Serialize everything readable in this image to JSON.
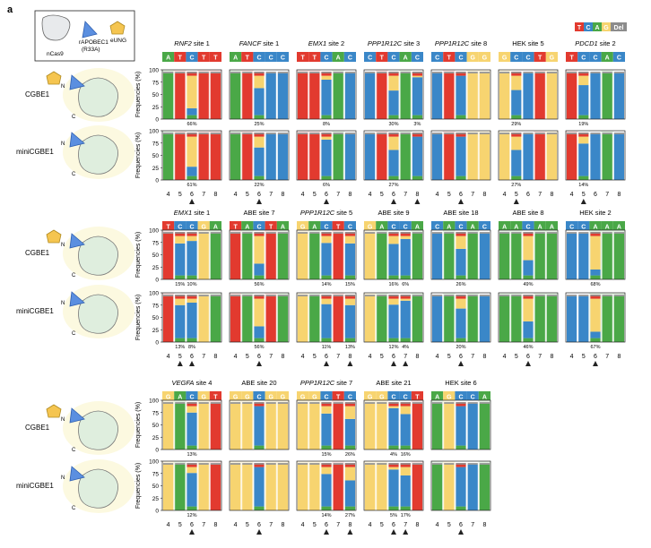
{
  "panel_letter": "a",
  "legend": {
    "bases": [
      "T",
      "C",
      "A",
      "G",
      "Del"
    ],
    "colors": {
      "T": "#e23a2f",
      "C": "#3a87c8",
      "A": "#4aa847",
      "G": "#f7d470",
      "Del": "#8c8c8c"
    }
  },
  "schematic": {
    "ncas9": "nCas9",
    "rapobec1": "rAPOBEC1",
    "r33a": "(R33A)",
    "eung": "eUNG",
    "n": "N",
    "c": "C"
  },
  "row_labels": {
    "cgbe1": "CGBE1",
    "minicgbe1": "miniCGBE1"
  },
  "ylabel": "Frequencies (%)",
  "yticks": [
    "100",
    "75",
    "50",
    "25",
    "0"
  ],
  "xtick_labels": [
    "4",
    "5",
    "6",
    "7",
    "8"
  ],
  "chart_data": {
    "type": "bar",
    "ylabel": "Frequencies (%)",
    "ylim": [
      0,
      100
    ],
    "positions": [
      4,
      5,
      6,
      7,
      8
    ],
    "sites": [
      {
        "name": "RNF2",
        "suffix": " site 1",
        "italic": true,
        "seq": [
          "A",
          "T",
          "C",
          "T",
          "T"
        ],
        "edit": [
          6
        ],
        "cgbe1": {
          "pct": [
            0,
            0,
            66,
            0,
            0
          ],
          "labels": [
            "66%"
          ]
        },
        "mini": {
          "pct": [
            0,
            0,
            61,
            0,
            0
          ],
          "labels": [
            "61%"
          ]
        }
      },
      {
        "name": "FANCF",
        "suffix": " site 1",
        "italic": true,
        "seq": [
          "A",
          "T",
          "C",
          "C",
          "C"
        ],
        "edit": [
          6
        ],
        "cgbe1": {
          "pct": [
            0,
            0,
            25,
            0,
            0
          ],
          "labels": [
            "25%"
          ]
        },
        "mini": {
          "pct": [
            0,
            0,
            22,
            0,
            0
          ],
          "labels": [
            "22%"
          ]
        }
      },
      {
        "name": "EMX1",
        "suffix": " site 2",
        "italic": true,
        "seq": [
          "T",
          "T",
          "C",
          "A",
          "C"
        ],
        "edit": [
          6
        ],
        "cgbe1": {
          "pct": [
            0,
            0,
            8,
            0,
            0
          ],
          "labels": [
            "8%"
          ]
        },
        "mini": {
          "pct": [
            0,
            0,
            6,
            0,
            0
          ],
          "labels": [
            "6%"
          ]
        }
      },
      {
        "name": "PPP1R12C",
        "suffix": " site 3",
        "italic": true,
        "seq": [
          "C",
          "T",
          "C",
          "A",
          "C"
        ],
        "edit": [
          6,
          8
        ],
        "cgbe1": {
          "pct": [
            0,
            0,
            30,
            0,
            3
          ],
          "labels": [
            "30%",
            "3%"
          ]
        },
        "mini": {
          "pct": [
            0,
            0,
            27,
            0,
            0
          ],
          "labels": [
            "27%"
          ]
        }
      },
      {
        "name": "PPP1R12C",
        "suffix": " site 8",
        "italic": true,
        "seq": [
          "C",
          "T",
          "C",
          "G",
          "G"
        ],
        "edit": [
          6
        ],
        "cgbe1": {
          "pct": [
            0,
            0,
            0,
            0,
            0
          ],
          "labels": []
        },
        "mini": {
          "pct": [
            0,
            0,
            0,
            0,
            0
          ],
          "labels": []
        }
      },
      {
        "name": "HEK",
        "suffix": " site 5",
        "italic": false,
        "seq": [
          "G",
          "C",
          "C",
          "T",
          "G"
        ],
        "edit": [
          5
        ],
        "cgbe1": {
          "pct": [
            0,
            29,
            0,
            0,
            0
          ],
          "labels": [
            "29%"
          ]
        },
        "mini": {
          "pct": [
            0,
            27,
            0,
            0,
            0
          ],
          "labels": [
            "27%"
          ]
        }
      },
      {
        "name": "PDCD1",
        "suffix": " site 2",
        "italic": true,
        "seq": [
          "T",
          "C",
          "C",
          "A",
          "C"
        ],
        "edit": [
          5
        ],
        "cgbe1": {
          "pct": [
            0,
            19,
            0,
            0,
            0
          ],
          "labels": [
            "19%"
          ]
        },
        "mini": {
          "pct": [
            0,
            14,
            0,
            0,
            0
          ],
          "labels": [
            "14%"
          ]
        }
      },
      {
        "name": "EMX1",
        "suffix": " site 1",
        "italic": true,
        "seq": [
          "T",
          "C",
          "C",
          "G",
          "A"
        ],
        "edit": [
          5,
          6
        ],
        "cgbe1": {
          "pct": [
            0,
            15,
            10,
            0,
            0
          ],
          "labels": [
            "15%",
            "10%"
          ]
        },
        "mini": {
          "pct": [
            0,
            13,
            8,
            0,
            0
          ],
          "labels": [
            "13%",
            "8%"
          ]
        }
      },
      {
        "name": "ABE",
        "suffix": " site 7",
        "italic": false,
        "seq": [
          "T",
          "A",
          "C",
          "T",
          "A"
        ],
        "edit": [
          6
        ],
        "cgbe1": {
          "pct": [
            0,
            0,
            56,
            0,
            0
          ],
          "labels": [
            "56%"
          ]
        },
        "mini": {
          "pct": [
            0,
            0,
            56,
            0,
            0
          ],
          "labels": [
            "56%"
          ]
        }
      },
      {
        "name": "PPP1R12C",
        "suffix": " site 5",
        "italic": true,
        "seq": [
          "G",
          "A",
          "C",
          "T",
          "C"
        ],
        "edit": [
          6,
          8
        ],
        "cgbe1": {
          "pct": [
            0,
            0,
            14,
            0,
            15
          ],
          "labels": [
            "14%",
            "15%"
          ]
        },
        "mini": {
          "pct": [
            0,
            0,
            11,
            0,
            13
          ],
          "labels": [
            "11%",
            "13%"
          ]
        }
      },
      {
        "name": "ABE",
        "suffix": " site 9",
        "italic": false,
        "seq": [
          "G",
          "A",
          "C",
          "C",
          "A"
        ],
        "edit": [
          6,
          7
        ],
        "cgbe1": {
          "pct": [
            0,
            0,
            16,
            6,
            0
          ],
          "labels": [
            "16%",
            "6%"
          ]
        },
        "mini": {
          "pct": [
            0,
            0,
            12,
            4,
            0
          ],
          "labels": [
            "12%",
            "4%"
          ]
        }
      },
      {
        "name": "ABE",
        "suffix": " site 18",
        "italic": false,
        "seq": [
          "C",
          "A",
          "C",
          "A",
          "C"
        ],
        "edit": [
          6
        ],
        "cgbe1": {
          "pct": [
            0,
            0,
            26,
            0,
            0
          ],
          "labels": [
            "26%"
          ]
        },
        "mini": {
          "pct": [
            0,
            0,
            20,
            0,
            0
          ],
          "labels": [
            "20%"
          ]
        }
      },
      {
        "name": "ABE",
        "suffix": " site 8",
        "italic": false,
        "seq": [
          "A",
          "A",
          "C",
          "A",
          "A"
        ],
        "edit": [
          6
        ],
        "cgbe1": {
          "pct": [
            0,
            0,
            49,
            0,
            0
          ],
          "labels": [
            "49%"
          ]
        },
        "mini": {
          "pct": [
            0,
            0,
            46,
            0,
            0
          ],
          "labels": [
            "46%"
          ]
        }
      },
      {
        "name": "HEK",
        "suffix": " site 2",
        "italic": false,
        "seq": [
          "C",
          "C",
          "A",
          "A",
          "A"
        ],
        "edit": [
          6
        ],
        "cgbe1": {
          "pct": [
            0,
            0,
            68,
            0,
            0
          ],
          "labels": [
            "68%"
          ]
        },
        "mini": {
          "pct": [
            0,
            0,
            67,
            0,
            0
          ],
          "labels": [
            "67%"
          ]
        }
      },
      {
        "name": "VEGFA",
        "suffix": " site 4",
        "italic": true,
        "seq": [
          "G",
          "A",
          "C",
          "G",
          "T"
        ],
        "edit": [
          6
        ],
        "cgbe1": {
          "pct": [
            0,
            0,
            13,
            0,
            0
          ],
          "labels": [
            "13%"
          ]
        },
        "mini": {
          "pct": [
            0,
            0,
            12,
            0,
            0
          ],
          "labels": [
            "12%"
          ]
        }
      },
      {
        "name": "ABE",
        "suffix": " site 20",
        "italic": false,
        "seq": [
          "G",
          "G",
          "C",
          "G",
          "G"
        ],
        "edit": [
          6
        ],
        "cgbe1": {
          "pct": [
            0,
            0,
            0,
            0,
            0
          ],
          "labels": []
        },
        "mini": {
          "pct": [
            0,
            0,
            0,
            0,
            0
          ],
          "labels": []
        }
      },
      {
        "name": "PPP1R12C",
        "suffix": " site 7",
        "italic": true,
        "seq": [
          "G",
          "G",
          "C",
          "T",
          "C"
        ],
        "edit": [
          6,
          8
        ],
        "cgbe1": {
          "pct": [
            0,
            0,
            15,
            0,
            26
          ],
          "labels": [
            "15%",
            "26%"
          ]
        },
        "mini": {
          "pct": [
            0,
            0,
            14,
            0,
            27
          ],
          "labels": [
            "14%",
            "27%"
          ]
        }
      },
      {
        "name": "ABE",
        "suffix": " site 21",
        "italic": false,
        "seq": [
          "G",
          "G",
          "C",
          "C",
          "T"
        ],
        "edit": [
          6,
          7
        ],
        "cgbe1": {
          "pct": [
            0,
            0,
            4,
            16,
            0
          ],
          "labels": [
            "4%",
            "16%"
          ]
        },
        "mini": {
          "pct": [
            0,
            0,
            5,
            17,
            0
          ],
          "labels": [
            "5%",
            "17%"
          ]
        }
      },
      {
        "name": "HEK",
        "suffix": " site 6",
        "italic": false,
        "seq": [
          "A",
          "G",
          "C",
          "C",
          "A"
        ],
        "edit": [
          6
        ],
        "cgbe1": {
          "pct": [
            0,
            0,
            0,
            0,
            0
          ],
          "labels": []
        },
        "mini": {
          "pct": [
            0,
            0,
            0,
            0,
            0
          ],
          "labels": []
        }
      }
    ]
  }
}
